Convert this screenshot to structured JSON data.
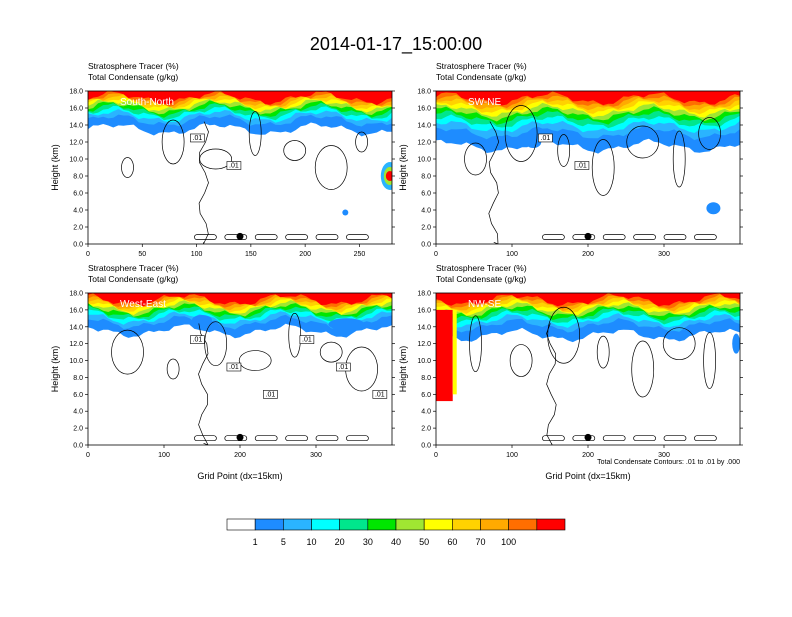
{
  "title": "2014-01-17_15:00:00",
  "chart_data": [
    {
      "type": "heatmap",
      "name": "South-North",
      "subtitle_line1": "Stratosphere Tracer   (%)",
      "subtitle_line2": "Total Condensate   (g/kg)",
      "ylabel": "Height (km)",
      "xlabel": "",
      "xlim": [
        0,
        280
      ],
      "ylim": [
        0,
        18
      ],
      "xticks": [
        "0",
        "50",
        "100",
        "150",
        "200",
        "250"
      ],
      "yticks": [
        "0.0",
        "2.0",
        "4.0",
        "6.0",
        "8.0",
        "10.0",
        "12.0",
        "14.0",
        "16.0",
        "18.0"
      ],
      "contour_labels": [
        ".01",
        ".01"
      ],
      "tracer_band": {
        "base_km": 13.5,
        "top_km": 18
      },
      "marker_x": 140
    },
    {
      "type": "heatmap",
      "name": "SW-NE",
      "subtitle_line1": "Stratosphere Tracer   (%)",
      "subtitle_line2": "Total Condensate   (g/kg)",
      "ylabel": "Height (km)",
      "xlabel": "",
      "xlim": [
        0,
        400
      ],
      "ylim": [
        0,
        18
      ],
      "xticks": [
        "0",
        "100",
        "200",
        "300"
      ],
      "yticks": [
        "0.0",
        "2.0",
        "4.0",
        "6.0",
        "8.0",
        "10.0",
        "12.0",
        "14.0",
        "16.0",
        "18.0"
      ],
      "contour_labels": [
        ".01",
        ".01"
      ],
      "tracer_band": {
        "base_km": 11.5,
        "top_km": 18
      },
      "marker_x": 200
    },
    {
      "type": "heatmap",
      "name": "West-East",
      "subtitle_line1": "Stratosphere Tracer   (%)",
      "subtitle_line2": "Total Condensate   (g/kg)",
      "ylabel": "Height (km)",
      "xlabel": "Grid Point (dx=15km)",
      "xlim": [
        0,
        400
      ],
      "ylim": [
        0,
        18
      ],
      "xticks": [
        "0",
        "100",
        "200",
        "300"
      ],
      "yticks": [
        "0.0",
        "2.0",
        "4.0",
        "6.0",
        "8.0",
        "10.0",
        "12.0",
        "14.0",
        "16.0",
        "18.0"
      ],
      "contour_labels": [
        ".01",
        ".01",
        ".01",
        ".01",
        ".01",
        ".01"
      ],
      "tracer_band": {
        "base_km": 13.5,
        "top_km": 18
      },
      "marker_x": 200
    },
    {
      "type": "heatmap",
      "name": "NW-SE",
      "subtitle_line1": "Stratosphere Tracer   (%)",
      "subtitle_line2": "Total Condensate   (g/kg)",
      "ylabel": "Height (km)",
      "xlabel": "Grid Point (dx=15km)",
      "xlim": [
        0,
        400
      ],
      "ylim": [
        0,
        18
      ],
      "xticks": [
        "0",
        "100",
        "200",
        "300"
      ],
      "yticks": [
        "0.0",
        "2.0",
        "4.0",
        "6.0",
        "8.0",
        "10.0",
        "12.0",
        "14.0",
        "16.0",
        "18.0"
      ],
      "contour_labels": [],
      "tracer_band": {
        "base_km": 13.0,
        "top_km": 18
      },
      "marker_x": 200,
      "note": "Total Condensate Contours: .01 to .01 by .000"
    }
  ],
  "colorbar": {
    "levels": [
      "1",
      "5",
      "10",
      "20",
      "30",
      "40",
      "50",
      "60",
      "70",
      "100"
    ],
    "colors": [
      "#ffffff",
      "#1e8cff",
      "#2ab4ff",
      "#00ffff",
      "#00e68c",
      "#00e600",
      "#a0e632",
      "#ffff00",
      "#ffd200",
      "#ffaa00",
      "#ff6e00",
      "#ff0000"
    ]
  }
}
